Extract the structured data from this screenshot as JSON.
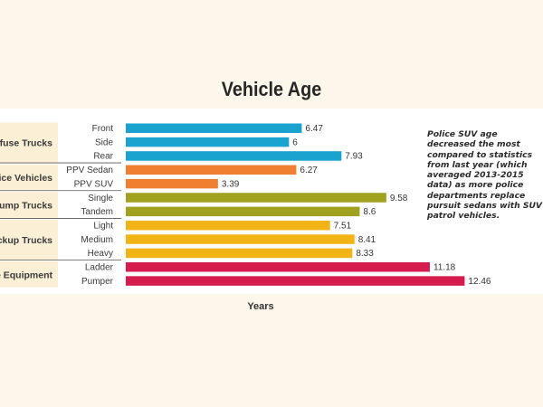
{
  "chart_data": {
    "type": "bar",
    "orientation": "horizontal",
    "title": "Vehicle Age",
    "xlabel": "Years",
    "ylabel": "",
    "xlim": [
      0,
      14
    ],
    "grid": false,
    "annotation": "Police SUV age decreased the most compared to statistics from last year (which averaged 2013-2015 data) as more police departments replace pursuit sedans with SUV patrol vehicles.",
    "groups": [
      {
        "label": "fuse Trucks",
        "color": "#1ba3cf",
        "items": [
          {
            "label": "Front",
            "value": 6.47,
            "value_label": "6.47"
          },
          {
            "label": "Side",
            "value": 6,
            "value_label": "6"
          },
          {
            "label": "Rear",
            "value": 7.93,
            "value_label": "7.93"
          }
        ]
      },
      {
        "label": "ice Vehicles",
        "color": "#f07f32",
        "items": [
          {
            "label": "PPV Sedan",
            "value": 6.27,
            "value_label": "6.27"
          },
          {
            "label": "PPV SUV",
            "value": 3.39,
            "value_label": "3.39"
          }
        ]
      },
      {
        "label": "ump Trucks",
        "color": "#a0a11f",
        "items": [
          {
            "label": "Single",
            "value": 9.58,
            "value_label": "9.58"
          },
          {
            "label": "Tandem",
            "value": 8.6,
            "value_label": "8.6"
          }
        ]
      },
      {
        "label": "ckup Trucks",
        "color": "#f2b316",
        "items": [
          {
            "label": "Light",
            "value": 7.51,
            "value_label": "7.51"
          },
          {
            "label": "Medium",
            "value": 8.41,
            "value_label": "8.41"
          },
          {
            "label": "Heavy",
            "value": 8.33,
            "value_label": "8.33"
          }
        ]
      },
      {
        "label": "e Equipment",
        "color": "#d61b4f",
        "items": [
          {
            "label": "Ladder",
            "value": 11.18,
            "value_label": "11.18"
          },
          {
            "label": "Pumper",
            "value": 12.46,
            "value_label": "12.46"
          }
        ]
      }
    ]
  }
}
